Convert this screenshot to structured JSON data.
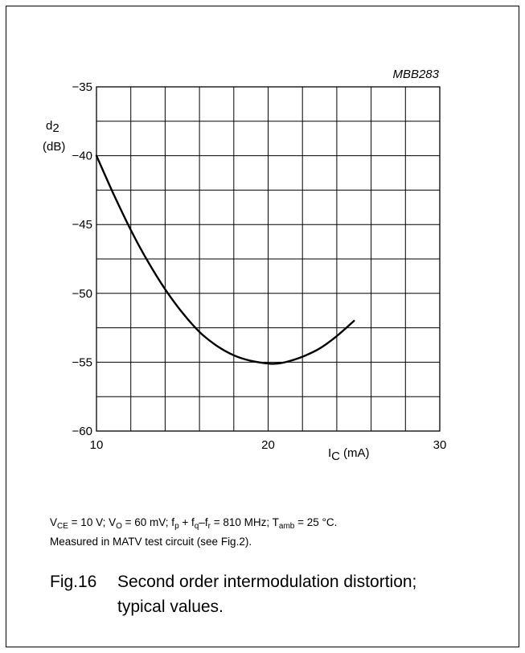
{
  "figure": {
    "code": "MBB283",
    "conditions_line1": {
      "vce_sym": "V",
      "vce_sub": "CE",
      "vce_val": " = 10 V; ",
      "vo_sym": "V",
      "vo_sub": "O",
      "vo_val": " = 60 mV; ",
      "fp_sym": "f",
      "fp_sub": "p",
      "plus": " + ",
      "fq_sym": "f",
      "fq_sub": "q",
      "dash": "–",
      "fr_sym": "f",
      "fr_sub": "r",
      "freq_val": " = 810 MHz; ",
      "t_sym": "T",
      "t_sub": "amb",
      "t_val": " = 25 °C."
    },
    "conditions_line2": "Measured in MATV test circuit (see Fig.2).",
    "caption_number": "Fig.16",
    "caption_line1": "Second order intermodulation distortion;",
    "caption_line2": "typical values."
  },
  "chart_data": {
    "type": "line",
    "ylabel_sym": "d",
    "ylabel_sub": "2",
    "ylabel_unit": "(dB)",
    "xlabel_sym": "I",
    "xlabel_sub": "C",
    "xlabel_unit": "(mA)",
    "xlim": [
      10,
      30
    ],
    "ylim": [
      -60,
      -35
    ],
    "x_tick_labels": [
      "10",
      "20",
      "30"
    ],
    "y_tick_labels": [
      "−35",
      "−40",
      "−45",
      "−50",
      "−55",
      "−60"
    ],
    "x_ticks": [
      10,
      20,
      30
    ],
    "y_ticks": [
      -35,
      -40,
      -45,
      -50,
      -55,
      -60
    ],
    "grid": true,
    "series": [
      {
        "x": [
          10,
          11,
          12,
          13,
          14,
          15,
          16,
          17,
          18,
          19,
          20,
          20.5,
          21,
          22,
          23,
          24,
          25
        ],
        "y": [
          -40,
          -42.8,
          -45.4,
          -47.7,
          -49.7,
          -51.4,
          -52.8,
          -53.8,
          -54.5,
          -54.9,
          -55.1,
          -55.1,
          -55.0,
          -54.6,
          -54.0,
          -53.1,
          -52.0
        ]
      }
    ]
  }
}
